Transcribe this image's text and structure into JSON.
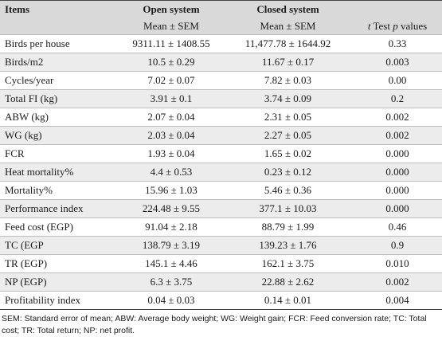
{
  "header": {
    "col1": "Items",
    "col2": "Open system",
    "col3": "Closed system",
    "col4": "",
    "sub_col2": "Mean ± SEM",
    "sub_col3": "Mean ± SEM",
    "sub_col4_t": "t",
    "sub_col4_mid": " Test ",
    "sub_col4_p": "p",
    "sub_col4_end": " values"
  },
  "rows": [
    {
      "item": "Birds per house",
      "open": "9311.11 ± 1408.55",
      "closed": "11,477.78 ± 1644.92",
      "p": "0.33"
    },
    {
      "item": "Birds/m2",
      "open": "10.5 ± 0.29",
      "closed": "11.67 ± 0.17",
      "p": "0.003"
    },
    {
      "item": "Cycles/year",
      "open": "7.02 ± 0.07",
      "closed": "7.82 ± 0.03",
      "p": "0.00"
    },
    {
      "item": "Total FI (kg)",
      "open": "3.91 ± 0.1",
      "closed": "3.74 ± 0.09",
      "p": "0.2"
    },
    {
      "item": "ABW (kg)",
      "open": "2.07 ± 0.04",
      "closed": "2.31 ± 0.05",
      "p": "0.002"
    },
    {
      "item": "WG (kg)",
      "open": "2.03 ± 0.04",
      "closed": "2.27 ± 0.05",
      "p": "0.002"
    },
    {
      "item": "FCR",
      "open": "1.93 ± 0.04",
      "closed": "1.65 ± 0.02",
      "p": "0.000"
    },
    {
      "item": "Heat mortality%",
      "open": "4.4 ± 0.53",
      "closed": "0.23 ± 0.12",
      "p": "0.000"
    },
    {
      "item": "Mortality%",
      "open": "15.96 ± 1.03",
      "closed": "5.46 ± 0.36",
      "p": "0.000"
    },
    {
      "item": "Performance index",
      "open": "224.48 ± 9.55",
      "closed": "377.1 ± 10.03",
      "p": "0.000"
    },
    {
      "item": "Feed cost (EGP)",
      "open": "91.04 ± 2.18",
      "closed": "88.79 ± 1.99",
      "p": "0.46"
    },
    {
      "item": "TC (EGP",
      "open": "138.79 ± 3.19",
      "closed": "139.23 ± 1.76",
      "p": "0.9"
    },
    {
      "item": "TR (EGP)",
      "open": "145.1 ± 4.46",
      "closed": "162.1 ± 3.75",
      "p": "0.010"
    },
    {
      "item": "NP (EGP)",
      "open": "6.3 ± 3.75",
      "closed": "22.88 ± 2.62",
      "p": "0.002"
    },
    {
      "item": "Profitability index",
      "open": "0.04 ± 0.03",
      "closed": "0.14 ± 0.01",
      "p": "0.004"
    }
  ],
  "footnote": "SEM: Standard error of mean; ABW: Average body weight; WG: Weight gain; FCR: Feed conversion rate; TC: Total cost; TR: Total return; NP: net profit."
}
